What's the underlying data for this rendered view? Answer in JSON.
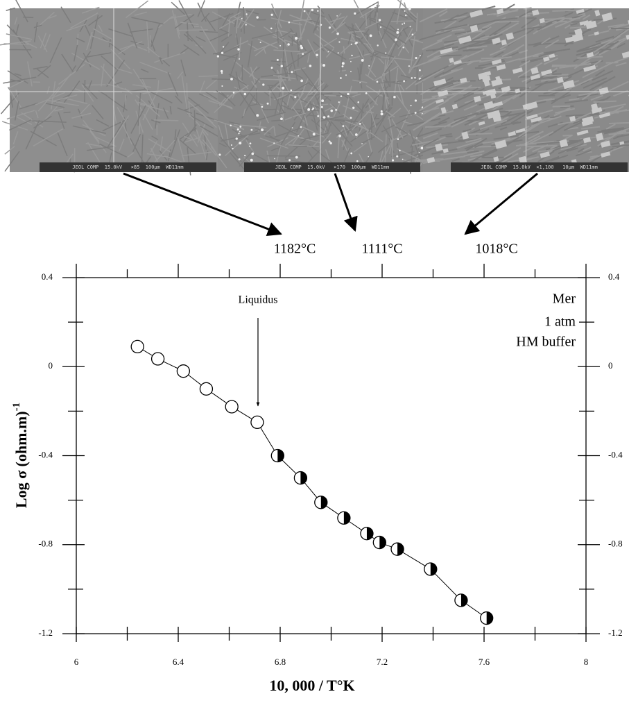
{
  "micrographs": [
    {
      "caption": "JEOL COMP  15.0kV   ×85  100μm  WD11mm",
      "temperature": "1182°C"
    },
    {
      "caption": "JEOL COMP  15.0kV   ×170  100μm  WD11mm",
      "temperature": "1111°C"
    },
    {
      "caption": "JEOL COMP  15.0kV  ×1,100   10μm  WD11mm",
      "temperature": "1018°C"
    }
  ],
  "chart_data": {
    "type": "line",
    "xlabel": "10, 000 / T°K",
    "ylabel": "Log σ (ohm.m)",
    "ylabel_exponent": "-1",
    "annotations": [
      "Liquidus",
      "Mer",
      "1 atm",
      "HM buffer"
    ],
    "x": [
      6.24,
      6.32,
      6.42,
      6.51,
      6.61,
      6.71,
      6.79,
      6.88,
      6.96,
      7.05,
      7.14,
      7.19,
      7.26,
      7.39,
      7.51,
      7.61
    ],
    "series": [
      {
        "color": "#000000",
        "values": [
          0.09,
          0.035,
          -0.02,
          -0.1,
          -0.18,
          -0.25,
          -0.4,
          -0.5,
          -0.61,
          -0.68,
          -0.75,
          -0.79,
          -0.82,
          -0.91,
          -1.05,
          -1.13
        ],
        "markers": [
          "open",
          "open",
          "open",
          "open",
          "open",
          "open",
          "half",
          "half",
          "half",
          "half",
          "half",
          "half",
          "half",
          "half",
          "half",
          "half"
        ]
      }
    ],
    "xlim": [
      6,
      8
    ],
    "xticks": [
      6,
      6.4,
      6.8,
      7.2,
      7.6,
      8
    ],
    "xminor": [
      6.2,
      6.6,
      7.0,
      7.4,
      7.8
    ],
    "ylim": [
      -1.2,
      0.4
    ],
    "yticks": [
      0.4,
      0,
      -0.4,
      -0.8,
      -1.2
    ],
    "yminor": [
      0.2,
      -0.2,
      -0.6,
      -1.0
    ],
    "mirror_y_axis": true
  }
}
